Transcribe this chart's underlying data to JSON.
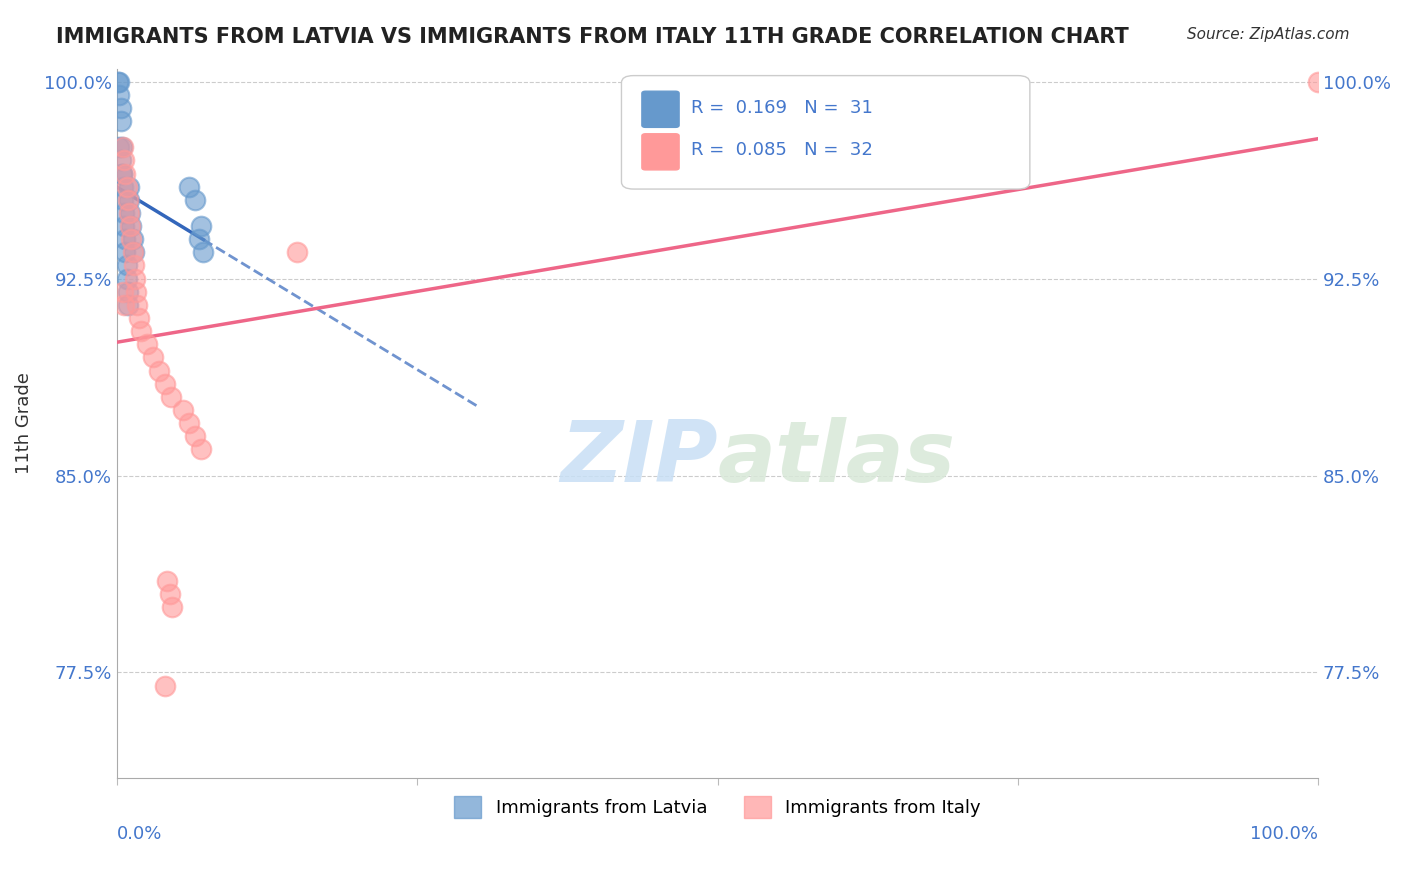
{
  "title": "IMMIGRANTS FROM LATVIA VS IMMIGRANTS FROM ITALY 11TH GRADE CORRELATION CHART",
  "source": "Source: ZipAtlas.com",
  "ylabel": "11th Grade",
  "legend_label1": "Immigrants from Latvia",
  "legend_label2": "Immigrants from Italy",
  "R_latvia": 0.169,
  "N_latvia": 31,
  "R_italy": 0.085,
  "N_italy": 32,
  "xlim": [
    0.0,
    1.0
  ],
  "ylim": [
    0.735,
    1.005
  ],
  "yticks": [
    0.775,
    0.85,
    0.925,
    1.0
  ],
  "ytick_labels": [
    "77.5%",
    "85.0%",
    "92.5%",
    "100.0%"
  ],
  "color_latvia": "#6699CC",
  "color_italy": "#FF9999",
  "trend_color_latvia": "#3366BB",
  "trend_color_italy": "#EE6688",
  "watermark_zip": "ZIP",
  "watermark_atlas": "atlas",
  "latvia_x": [
    0.001,
    0.002,
    0.002,
    0.003,
    0.003,
    0.004,
    0.004,
    0.005,
    0.005,
    0.006,
    0.006,
    0.007,
    0.007,
    0.008,
    0.008,
    0.009,
    0.009,
    0.01,
    0.01,
    0.011,
    0.012,
    0.013,
    0.014,
    0.002,
    0.003,
    0.004,
    0.06,
    0.065,
    0.07,
    0.068,
    0.072
  ],
  "latvia_y": [
    1.0,
    1.0,
    0.995,
    0.99,
    0.985,
    0.975,
    0.965,
    0.96,
    0.955,
    0.95,
    0.945,
    0.94,
    0.935,
    0.93,
    0.925,
    0.92,
    0.915,
    0.96,
    0.955,
    0.95,
    0.945,
    0.94,
    0.935,
    0.975,
    0.97,
    0.965,
    0.96,
    0.955,
    0.945,
    0.94,
    0.935
  ],
  "italy_x": [
    0.005,
    0.006,
    0.007,
    0.008,
    0.009,
    0.01,
    0.011,
    0.012,
    0.013,
    0.014,
    0.015,
    0.016,
    0.017,
    0.018,
    0.02,
    0.025,
    0.03,
    0.035,
    0.04,
    0.045,
    0.055,
    0.06,
    0.065,
    0.07,
    0.042,
    0.044,
    0.046,
    0.04,
    0.15,
    1.0,
    0.005,
    0.006
  ],
  "italy_y": [
    0.975,
    0.97,
    0.965,
    0.96,
    0.955,
    0.95,
    0.945,
    0.94,
    0.935,
    0.93,
    0.925,
    0.92,
    0.915,
    0.91,
    0.905,
    0.9,
    0.895,
    0.89,
    0.885,
    0.88,
    0.875,
    0.87,
    0.865,
    0.86,
    0.81,
    0.805,
    0.8,
    0.77,
    0.935,
    1.0,
    0.92,
    0.915
  ]
}
